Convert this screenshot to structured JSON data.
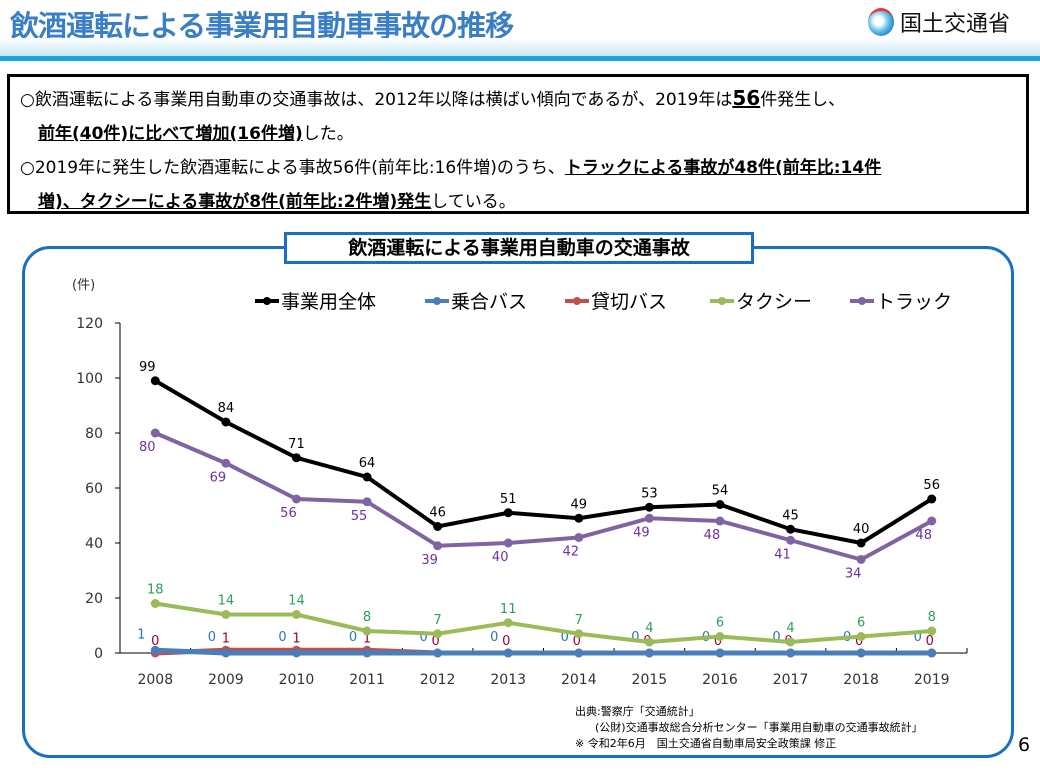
{
  "header": {
    "title": "飲酒運転による事業用自動車事故の推移",
    "logo_text": "国土交通省"
  },
  "summary": {
    "line1a": "○飲酒運転による事業用自動車の交通事故は、2012年以降は横ばい傾向であるが、2019年は",
    "line1b": "56",
    "line1c": "件発生し、",
    "line2a": "前年(40件)に比べて増加(16件増)",
    "line2b": "した。",
    "line3a": "○2019年に発生した飲酒運転による事故56件(前年比:16件増)のうち、",
    "line3b": "トラックによる事故が48件(前年比:14件",
    "line4a": "増)、タクシーによる事故が8件(前年比:2件増)発生",
    "line4b": "している。"
  },
  "chart_data": {
    "type": "line",
    "title": "飲酒運転による事業用自動車の交通事故",
    "ylabel": "(件)",
    "ylim": [
      0,
      120
    ],
    "yticks": [
      0,
      20,
      40,
      60,
      80,
      100,
      120
    ],
    "categories": [
      "2008",
      "2009",
      "2010",
      "2011",
      "2012",
      "2013",
      "2014",
      "2015",
      "2016",
      "2017",
      "2018",
      "2019"
    ],
    "legend_position": "top",
    "series": [
      {
        "name": "事業用全体",
        "color": "#000000",
        "values": [
          99,
          84,
          71,
          64,
          46,
          51,
          49,
          53,
          54,
          45,
          40,
          56
        ]
      },
      {
        "name": "乗合バス",
        "color": "#4a7ebb",
        "values": [
          1,
          0,
          0,
          0,
          0,
          0,
          0,
          0,
          0,
          0,
          0,
          0
        ]
      },
      {
        "name": "貸切バス",
        "color": "#c0504d",
        "values": [
          0,
          1,
          1,
          1,
          0,
          0,
          0,
          0,
          0,
          0,
          0,
          0
        ]
      },
      {
        "name": "タクシー",
        "color": "#9bbb59",
        "values": [
          18,
          14,
          14,
          8,
          7,
          11,
          7,
          4,
          6,
          4,
          6,
          8
        ]
      },
      {
        "name": "トラック",
        "color": "#8064a2",
        "values": [
          80,
          69,
          56,
          55,
          39,
          40,
          42,
          49,
          48,
          41,
          34,
          48
        ]
      }
    ]
  },
  "source": {
    "line1": "出典:警察庁「交通統計」",
    "line2": "(公財)交通事故総合分析センター「事業用自動車の交通事故統計」",
    "line3": "※ 令和2年6月　国土交通省自動車局安全政策課 修正"
  },
  "page_number": "6"
}
